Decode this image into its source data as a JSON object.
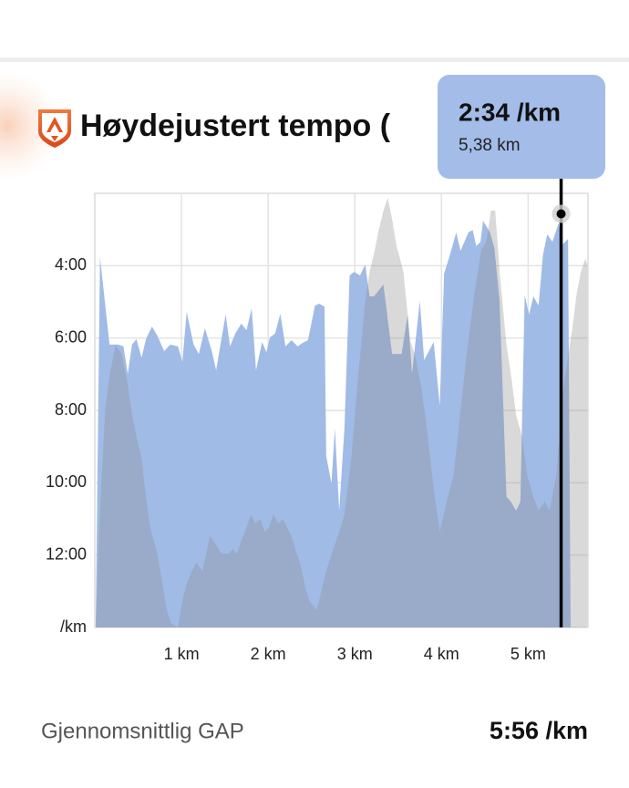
{
  "title": "Høydejustert tempo (",
  "chart_data": {
    "type": "area",
    "series": [
      {
        "color": "#a0bbe6",
        "x": [
          0.01,
          0.06,
          0.17,
          0.27,
          0.33,
          0.38,
          0.43,
          0.48,
          0.54,
          0.59,
          0.66,
          0.72,
          0.8,
          0.87,
          0.96,
          1.01,
          1.06,
          1.14,
          1.2,
          1.27,
          1.35,
          1.4,
          1.45,
          1.51,
          1.56,
          1.62,
          1.69,
          1.75,
          1.81,
          1.86,
          1.93,
          1.98,
          2.02,
          2.08,
          2.14,
          2.2,
          2.27,
          2.34,
          2.4,
          2.46,
          2.54,
          2.59,
          2.65,
          2.67,
          2.73,
          2.77,
          2.82,
          2.88,
          2.94,
          2.99,
          3.06,
          3.12,
          3.17,
          3.22,
          3.33,
          3.43,
          3.54,
          3.61,
          3.66,
          3.75,
          3.8,
          3.91,
          3.98,
          4.03,
          4.09,
          4.17,
          4.22,
          4.31,
          4.36,
          4.4,
          4.45,
          4.48,
          4.56,
          4.61,
          4.67,
          4.75,
          4.8,
          4.86,
          4.91,
          4.96,
          5.01,
          5.06,
          5.12,
          5.17,
          5.22,
          5.28,
          5.35,
          5.4,
          5.46,
          5.49
        ],
        "values": [
          14,
          3.76,
          6.18,
          6.18,
          6.23,
          6.99,
          6.18,
          6.03,
          6.54,
          6.03,
          5.68,
          5.93,
          6.36,
          6.18,
          6.23,
          6.66,
          5.28,
          6.18,
          6.44,
          5.73,
          6.36,
          6.89,
          6.18,
          5.35,
          6.23,
          5.88,
          5.6,
          5.78,
          5.18,
          6.89,
          6.11,
          6.39,
          5.98,
          5.88,
          5.33,
          6.23,
          6.06,
          6.23,
          6.13,
          6.06,
          5.1,
          5.05,
          5.13,
          9.26,
          10.02,
          8.5,
          10.77,
          8.5,
          4.27,
          4.17,
          4.27,
          3.97,
          4.85,
          4.85,
          4.52,
          6.44,
          6.44,
          5.35,
          6.99,
          4.97,
          6.61,
          6.11,
          7.87,
          4.22,
          3.76,
          3.08,
          3.59,
          3.08,
          3.01,
          3.46,
          3.34,
          2.76,
          3.08,
          3.51,
          4.97,
          10.39,
          10.52,
          10.77,
          10.52,
          4.82,
          5.35,
          4.85,
          5.1,
          3.71,
          3.13,
          3.34,
          2.83,
          3.41,
          3.26,
          14
        ]
      },
      {
        "color": "#8c8c8c",
        "axis": "y2",
        "x": [
          0.01,
          0.06,
          0.12,
          0.17,
          0.24,
          0.31,
          0.38,
          0.43,
          0.48,
          0.54,
          0.59,
          0.64,
          0.72,
          0.78,
          0.83,
          0.88,
          0.96,
          1.01,
          1.06,
          1.12,
          1.17,
          1.24,
          1.33,
          1.4,
          1.46,
          1.54,
          1.59,
          1.64,
          1.69,
          1.75,
          1.8,
          1.85,
          1.91,
          1.96,
          2.01,
          2.06,
          2.12,
          2.17,
          2.22,
          2.27,
          2.33,
          2.38,
          2.43,
          2.48,
          2.56,
          2.61,
          2.67,
          2.75,
          2.82,
          2.88,
          2.96,
          3.03,
          3.12,
          3.17,
          3.22,
          3.27,
          3.33,
          3.38,
          3.43,
          3.48,
          3.56,
          3.64,
          3.69,
          3.77,
          3.83,
          3.91,
          3.98,
          4.06,
          4.14,
          4.22,
          4.29,
          4.38,
          4.46,
          4.52,
          4.57,
          4.62,
          4.67,
          4.75,
          4.81,
          4.86,
          4.93,
          4.99,
          5.06,
          5.12,
          5.19,
          5.25,
          5.33,
          5.4,
          5.45,
          5.51,
          5.56,
          5.61,
          5.66,
          5.69
        ],
        "values": [
          0,
          27,
          50,
          58,
          65,
          63,
          56,
          49,
          44,
          39,
          30,
          23,
          17,
          10,
          4,
          1,
          0,
          6,
          10,
          13,
          15,
          13,
          21,
          19,
          17,
          17,
          18,
          17,
          20,
          23,
          26,
          24,
          25,
          22,
          23,
          26,
          24,
          25,
          23,
          21,
          17,
          14,
          9,
          6,
          4,
          8,
          13,
          18,
          22,
          26,
          39,
          56,
          75,
          82,
          86,
          91,
          96,
          99,
          94,
          88,
          82,
          66,
          63,
          55,
          46,
          32,
          22,
          29,
          35,
          50,
          63,
          77,
          87,
          89,
          96,
          96,
          82,
          65,
          57,
          49,
          44,
          35,
          30,
          27,
          29,
          27,
          36,
          54,
          61,
          69,
          77,
          82,
          85,
          83
        ]
      }
    ],
    "xlim": [
      0,
      5.69
    ],
    "xticks": [
      {
        "value": 1,
        "label": "1 km"
      },
      {
        "value": 2,
        "label": "2 km"
      },
      {
        "value": 3,
        "label": "3 km"
      },
      {
        "value": 4,
        "label": "4 km"
      },
      {
        "value": 5,
        "label": "5 km"
      }
    ],
    "ylim": [
      14,
      2
    ],
    "yticks": [
      {
        "value": 4,
        "label": "4:00"
      },
      {
        "value": 6,
        "label": "6:00"
      },
      {
        "value": 8,
        "label": "8:00"
      },
      {
        "value": 10,
        "label": "10:00"
      },
      {
        "value": 12,
        "label": "12:00"
      },
      {
        "value": 14,
        "label": "/km"
      }
    ],
    "y2lim": [
      0,
      100
    ],
    "grid": true,
    "tooltip": {
      "x": 5.38,
      "value": 2.567,
      "label": "2:34 /km",
      "x_label": "5,38 km"
    }
  },
  "summary": {
    "label": "Gjennomsnittlig GAP",
    "value": "5:56 /km"
  }
}
